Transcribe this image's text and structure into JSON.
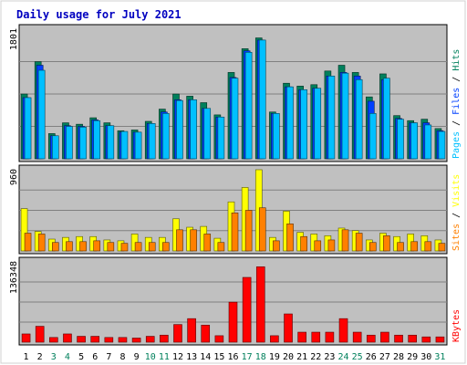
{
  "chart_data": {
    "title": "Daily usage for July 2021",
    "type": "bar",
    "colors": {
      "background": "#c0c0c0",
      "frame": "#808080",
      "grid": "#808080",
      "title": "#0000c0",
      "hits": "#00805c",
      "files": "#0040ff",
      "pages": "#00c0ff",
      "sites": "#ff8000",
      "visits": "#ffff00",
      "kbytes": "#ff0000",
      "weekend_day": "#00805c",
      "weekday": "#000000"
    },
    "x": [
      "1",
      "2",
      "3",
      "4",
      "5",
      "6",
      "7",
      "8",
      "9",
      "10",
      "11",
      "12",
      "13",
      "14",
      "15",
      "16",
      "17",
      "18",
      "19",
      "20",
      "21",
      "22",
      "23",
      "24",
      "25",
      "26",
      "27",
      "28",
      "29",
      "30",
      "31"
    ],
    "weekend_days": [
      "3",
      "4",
      "10",
      "11",
      "17",
      "18",
      "24",
      "25",
      "31"
    ],
    "panels": [
      {
        "id": "hits-files-pages",
        "axis_max_label": "1801",
        "ylim": [
          0,
          1801
        ],
        "legend": [
          "Pages",
          "Files",
          "Hits"
        ],
        "series": [
          {
            "name": "Hits",
            "values": [
              900,
              1350,
              350,
              500,
              480,
              570,
              500,
              390,
              400,
              520,
              690,
              900,
              870,
              780,
              610,
              1200,
              1530,
              1680,
              650,
              1050,
              1010,
              1030,
              1220,
              1300,
              1200,
              860,
              1180,
              600,
              530,
              550,
              420
            ]
          },
          {
            "name": "Files",
            "values": [
              850,
              1300,
              320,
              460,
              450,
              540,
              460,
              370,
              370,
              490,
              650,
              820,
              820,
              700,
              580,
              1130,
              1500,
              1650,
              630,
              1000,
              960,
              980,
              1150,
              1200,
              1150,
              800,
              1100,
              560,
              500,
              500,
              390
            ]
          },
          {
            "name": "Pages",
            "values": [
              850,
              1230,
              320,
              450,
              440,
              530,
              460,
              380,
              370,
              490,
              630,
              810,
              820,
              700,
              580,
              1120,
              1480,
              1650,
              630,
              1000,
              960,
              980,
              1150,
              1190,
              1100,
              630,
              1120,
              550,
              500,
              470,
              380
            ]
          }
        ]
      },
      {
        "id": "visits-sites",
        "axis_max_label": "960",
        "ylim": [
          0,
          960
        ],
        "legend": [
          "Sites",
          "Visits"
        ],
        "series": [
          {
            "name": "Visits",
            "values": [
              500,
              230,
              140,
              160,
              170,
              170,
              130,
              120,
              200,
              160,
              160,
              380,
              280,
              290,
              150,
              580,
              750,
              960,
              160,
              470,
              220,
              200,
              180,
              270,
              240,
              130,
              210,
              170,
              200,
              180,
              130
            ]
          },
          {
            "name": "Sites",
            "values": [
              210,
              200,
              100,
              110,
              110,
              120,
              100,
              90,
              100,
              100,
              100,
              250,
              250,
              200,
              100,
              450,
              480,
              510,
              120,
              320,
              170,
              120,
              130,
              250,
              210,
              100,
              180,
              100,
              110,
              110,
              90
            ]
          }
        ]
      },
      {
        "id": "kbytes",
        "axis_max_label": "136348",
        "ylim": [
          0,
          136348
        ],
        "legend": [
          "KBytes"
        ],
        "series": [
          {
            "name": "KBytes",
            "values": [
              14000,
              27000,
              8000,
              14000,
              10000,
              10000,
              8000,
              8000,
              7000,
              10000,
              12000,
              30000,
              40000,
              29000,
              11000,
              68000,
              110000,
              128000,
              11000,
              48000,
              17000,
              17000,
              17000,
              40000,
              17000,
              12000,
              17000,
              12000,
              12000,
              9000,
              9000
            ]
          }
        ]
      }
    ]
  }
}
